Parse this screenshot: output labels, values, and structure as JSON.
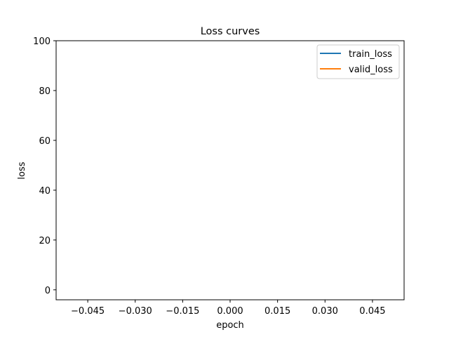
{
  "chart_data": {
    "type": "line",
    "title": "Loss curves",
    "xlabel": "epoch",
    "ylabel": "loss",
    "xlim": [
      -0.055,
      0.055
    ],
    "ylim": [
      -4,
      100
    ],
    "x_ticks": [
      -0.045,
      -0.03,
      -0.015,
      0.0,
      0.015,
      0.03,
      0.045
    ],
    "x_tick_labels": [
      "−0.045",
      "−0.030",
      "−0.015",
      "0.000",
      "0.015",
      "0.030",
      "0.045"
    ],
    "y_ticks": [
      0,
      20,
      40,
      60,
      80,
      100
    ],
    "y_tick_labels": [
      "0",
      "20",
      "40",
      "60",
      "80",
      "100"
    ],
    "grid": false,
    "legend_position": "top-right",
    "series": [
      {
        "name": "train_loss",
        "color": "#1f77b4",
        "x": [],
        "y": []
      },
      {
        "name": "valid_loss",
        "color": "#ff7f0e",
        "x": [],
        "y": []
      }
    ]
  }
}
